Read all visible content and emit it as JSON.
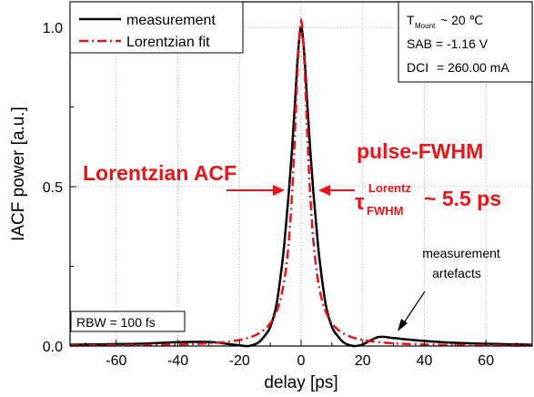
{
  "chart_data": {
    "type": "line",
    "xlabel": "delay [ps]",
    "ylabel": "IACF power [a.u.]",
    "xlim": [
      -75,
      75
    ],
    "ylim": [
      0,
      1.08
    ],
    "xticks": [
      -60,
      -40,
      -20,
      0,
      20,
      40,
      60
    ],
    "xtick_labels": [
      "-60",
      "-40",
      "-20",
      "0",
      "20",
      "40",
      "60"
    ],
    "yticks": [
      0.0,
      0.5,
      1.0
    ],
    "ytick_labels": [
      "0.0",
      "0.5",
      "1.0"
    ],
    "grid": true,
    "legend_position": "top-left",
    "series": [
      {
        "name": "measurement",
        "color": "#000000",
        "style": "solid",
        "x": [
          -75,
          -60,
          -50,
          -40,
          -30,
          -25,
          -20,
          -17,
          -14,
          -12,
          -10,
          -8,
          -6,
          -5,
          -4,
          -3,
          -2,
          -1,
          0,
          1,
          2,
          3,
          4,
          5,
          6,
          8,
          10,
          12,
          14,
          17,
          20,
          25,
          30,
          35,
          40,
          50,
          60,
          75
        ],
        "y": [
          0.004,
          0.006,
          0.008,
          0.012,
          0.013,
          0.008,
          0.002,
          0.0,
          0.01,
          0.03,
          0.06,
          0.13,
          0.27,
          0.37,
          0.48,
          0.61,
          0.76,
          0.92,
          1.0,
          0.92,
          0.76,
          0.61,
          0.48,
          0.37,
          0.27,
          0.13,
          0.06,
          0.03,
          0.01,
          0.0,
          0.005,
          0.028,
          0.025,
          0.02,
          0.016,
          0.01,
          0.007,
          0.004
        ]
      },
      {
        "name": "Lorentzian fit",
        "color": "#e8141b",
        "style": "dash-dot",
        "function": "lorentzian",
        "center": 0,
        "fwhm": 5.5,
        "amplitude": 1.02
      }
    ],
    "annotations": {
      "lorentzian_acf": "Lorentzian ACF",
      "pulse_fwhm": "pulse-FWHM",
      "tau_symbol": "τ",
      "tau_superscript": "Lorentz",
      "tau_subscript": "FWHM",
      "tau_value": "~ 5.5 ps",
      "artefacts_line1": "measurement",
      "artefacts_line2": "artefacts",
      "rbw": "RBW = 100 fs"
    },
    "info_box": {
      "t_mount_symbol": "T",
      "t_mount_subscript": "Mount",
      "t_mount_value": "~ 20 ℃",
      "sab": "SAB = -1.16 V",
      "dci_label": "DCI",
      "dci_value": "= 260.00 mA"
    }
  }
}
